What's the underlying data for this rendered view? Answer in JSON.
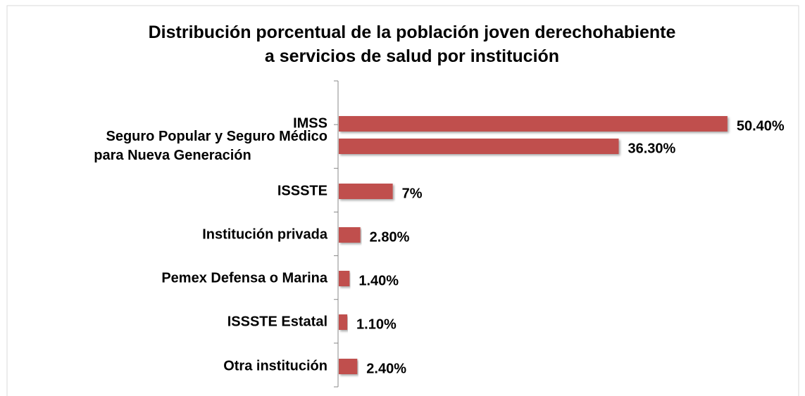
{
  "chart_data": {
    "type": "bar",
    "orientation": "horizontal",
    "title": "Distribución porcentual de la población joven derechohabiente\na servicios de salud por institución",
    "categories": [
      "IMSS",
      "Seguro Popular y Seguro Médico\npara Nueva Generación",
      "ISSSTE",
      "Institución privada",
      "Pemex Defensa o Marina",
      "ISSSTE Estatal",
      "Otra institución"
    ],
    "values": [
      50.4,
      36.3,
      7,
      2.8,
      1.4,
      1.1,
      2.4
    ],
    "value_labels": [
      "50.40%",
      "36.30%",
      "7%",
      "2.80%",
      "1.40%",
      "1.10%",
      "2.40%"
    ],
    "color": "#c0504d"
  }
}
